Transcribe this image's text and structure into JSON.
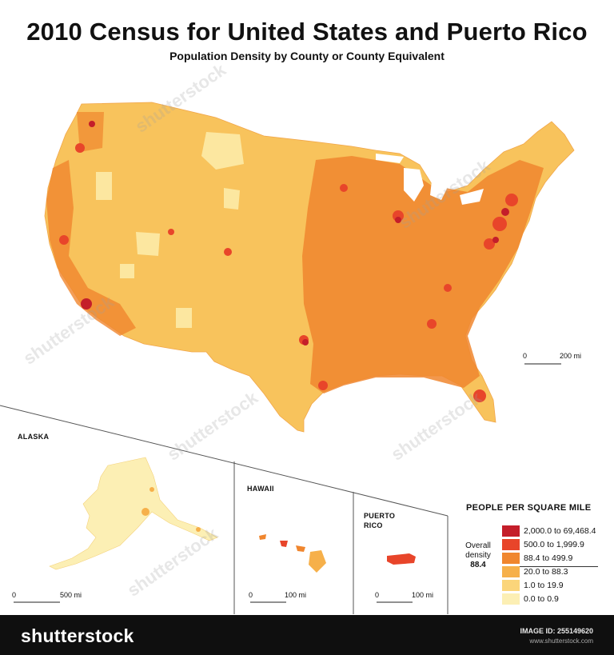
{
  "title": "2010 Census for United States and Puerto Rico",
  "subtitle": "Population Density by County or County Equivalent",
  "insets": {
    "alaska": "ALASKA",
    "hawaii": "HAWAII",
    "puerto_rico_line1": "PUERTO",
    "puerto_rico_line2": "RICO"
  },
  "scales": {
    "conus": {
      "zero": "0",
      "label": "200 mi"
    },
    "alaska": {
      "zero": "0",
      "label": "500 mi"
    },
    "hawaii": {
      "zero": "0",
      "label": "100 mi"
    },
    "puerto_rico": {
      "zero": "0",
      "label": "100 mi"
    }
  },
  "legend": {
    "title": "PEOPLE PER SQUARE MILE",
    "overall_label_1": "Overall",
    "overall_label_2": "density",
    "overall_value": "88.4",
    "items": [
      {
        "label": "2,000.0 to 69,468.4",
        "color": "#c41e2a"
      },
      {
        "label": "500.0 to 1,999.9",
        "color": "#e8452a"
      },
      {
        "label": "88.4 to 499.9",
        "color": "#f0862e"
      },
      {
        "label": "20.0 to 88.3",
        "color": "#f6b04a"
      },
      {
        "label": "1.0 to 19.9",
        "color": "#fbd57a"
      },
      {
        "label": "0.0 to 0.9",
        "color": "#fcefb4"
      }
    ]
  },
  "footer": {
    "logo": "shutterstock",
    "image_id": "IMAGE ID: 255149620",
    "site": "www.shutterstock.com"
  }
}
